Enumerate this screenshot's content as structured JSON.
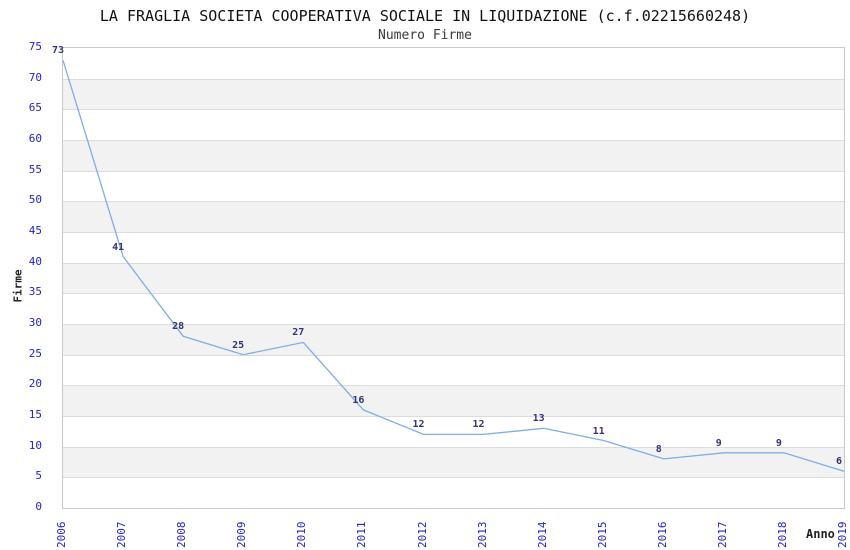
{
  "header": {
    "title": "LA FRAGLIA SOCIETA COOPERATIVA SOCIALE IN LIQUIDAZIONE (c.f.02215660248)",
    "subtitle": "Numero Firme"
  },
  "chart_data": {
    "type": "line",
    "title": "LA FRAGLIA SOCIETA COOPERATIVA SOCIALE IN LIQUIDAZIONE (c.f.02215660248)",
    "subtitle": "Numero Firme",
    "xlabel": "Anno",
    "ylabel": "Firme",
    "categories": [
      "2006",
      "2007",
      "2008",
      "2009",
      "2010",
      "2011",
      "2012",
      "2013",
      "2014",
      "2015",
      "2016",
      "2017",
      "2018",
      "2019"
    ],
    "series": [
      {
        "name": "Numero Firme",
        "values": [
          73,
          41,
          28,
          25,
          27,
          16,
          12,
          12,
          13,
          11,
          8,
          9,
          9,
          6
        ]
      }
    ],
    "data_labels_visible": true,
    "ylim": [
      0,
      75
    ],
    "ytick_step": 5,
    "yticks": [
      0,
      5,
      10,
      15,
      20,
      25,
      30,
      35,
      40,
      45,
      50,
      55,
      60,
      65,
      70,
      75
    ],
    "grid": "horizontal-alternating-bands",
    "legend_position": "none",
    "markers": "none"
  },
  "colors": {
    "line": "#7fade5",
    "tick_label": "#2222cc",
    "data_label": "#333377",
    "band_gray": "#f2f2f2",
    "band_white": "#ffffff",
    "gridline": "#dcdcdc",
    "frame": "#c9c9c9",
    "title": "#111111",
    "subtitle": "#3a3a3a",
    "axis_title": "#222222"
  }
}
